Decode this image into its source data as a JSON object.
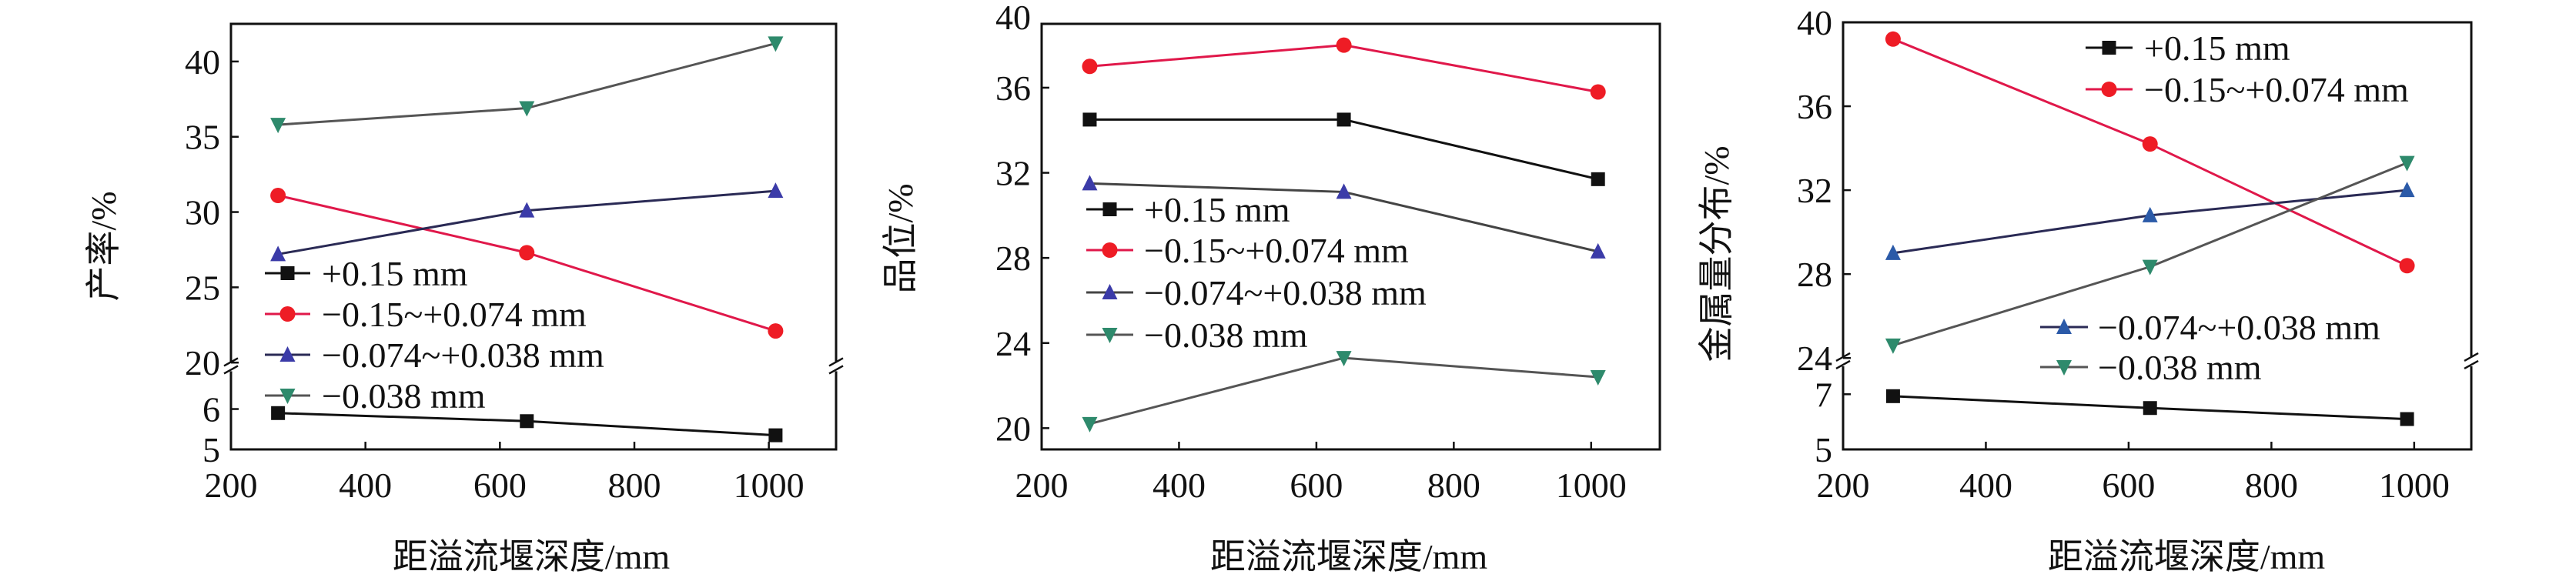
{
  "chart_data": [
    {
      "type": "line",
      "title": "",
      "xlabel": "距溢流堰深度/mm",
      "ylabel": "产率/%",
      "xlim": [
        200,
        1100
      ],
      "xticks": [
        200,
        400,
        600,
        800,
        1000
      ],
      "y_segments": [
        {
          "range": [
            5,
            6.95
          ],
          "ticks": [
            5,
            6
          ]
        },
        {
          "range": [
            20,
            42.5
          ],
          "ticks": [
            20,
            25,
            30,
            35,
            40
          ]
        }
      ],
      "legend": {
        "placement": "center-left",
        "groups": [
          [
            0,
            1,
            2,
            3
          ]
        ]
      },
      "series": [
        {
          "name": "+0.15 mm",
          "color": "#111111",
          "marker_color": "#111111",
          "marker": "square",
          "x": [
            270,
            640,
            1010
          ],
          "y": [
            5.9,
            5.7,
            5.35
          ]
        },
        {
          "name": "−0.15~+0.074 mm",
          "color": "#e0184a",
          "marker_color": "#ee1c25",
          "marker": "circle",
          "x": [
            270,
            640,
            1010
          ],
          "y": [
            31.1,
            27.3,
            22.1
          ]
        },
        {
          "name": "−0.074~+0.038 mm",
          "color": "#2a2a55",
          "marker_color": "#3b3ba8",
          "marker": "triangle-up",
          "x": [
            270,
            640,
            1010
          ],
          "y": [
            27.2,
            30.1,
            31.4
          ]
        },
        {
          "name": "−0.038 mm",
          "color": "#555555",
          "marker_color": "#2e8a6c",
          "marker": "triangle-down",
          "x": [
            270,
            640,
            1010
          ],
          "y": [
            35.8,
            36.9,
            41.2
          ]
        }
      ]
    },
    {
      "type": "line",
      "title": "",
      "xlabel": "距溢流堰深度/mm",
      "ylabel": "品位/%",
      "xlim": [
        200,
        1100
      ],
      "xticks": [
        200,
        400,
        600,
        800,
        1000
      ],
      "y_segments": [
        {
          "range": [
            19,
            39
          ],
          "ticks": [
            20,
            24,
            28,
            32,
            36,
            40
          ]
        }
      ],
      "legend": {
        "placement": "center-left",
        "groups": [
          [
            0,
            1,
            2,
            3
          ]
        ]
      },
      "series": [
        {
          "name": "+0.15 mm",
          "color": "#111111",
          "marker_color": "#111111",
          "marker": "square",
          "x": [
            270,
            640,
            1010
          ],
          "y": [
            34.5,
            34.5,
            31.7
          ]
        },
        {
          "name": "−0.15~+0.074 mm",
          "color": "#e0184a",
          "marker_color": "#ee1c25",
          "marker": "circle",
          "x": [
            270,
            640,
            1010
          ],
          "y": [
            37.0,
            38.0,
            35.8
          ]
        },
        {
          "name": "−0.074~+0.038 mm",
          "color": "#444444",
          "marker_color": "#3b3ba8",
          "marker": "triangle-up",
          "x": [
            270,
            640,
            1010
          ],
          "y": [
            31.5,
            31.1,
            28.3
          ]
        },
        {
          "name": "−0.038 mm",
          "color": "#555555",
          "marker_color": "#2e8a6c",
          "marker": "triangle-down",
          "x": [
            270,
            640,
            1010
          ],
          "y": [
            20.2,
            23.3,
            22.4
          ]
        }
      ]
    },
    {
      "type": "line",
      "title": "",
      "xlabel": "距溢流堰深度/mm",
      "ylabel": "金属量分布/%",
      "xlim": [
        200,
        1080
      ],
      "xticks": [
        200,
        400,
        600,
        800,
        1000
      ],
      "y_segments": [
        {
          "range": [
            5,
            8.05
          ],
          "ticks": [
            5,
            7
          ]
        },
        {
          "range": [
            24,
            40
          ],
          "ticks": [
            24,
            28,
            32,
            36,
            40
          ]
        }
      ],
      "legend": {
        "placement": "split: top-right and center-right",
        "groups": [
          [
            0,
            1
          ],
          [
            2,
            3
          ]
        ]
      },
      "series": [
        {
          "name": "+0.15 mm",
          "color": "#111111",
          "marker_color": "#111111",
          "marker": "square",
          "x": [
            270,
            630,
            990
          ],
          "y": [
            6.93,
            6.5,
            6.1
          ]
        },
        {
          "name": "−0.15~+0.074 mm",
          "color": "#e0184a",
          "marker_color": "#ee1c25",
          "marker": "circle",
          "x": [
            270,
            630,
            990
          ],
          "y": [
            39.2,
            34.2,
            28.4
          ]
        },
        {
          "name": "−0.074~+0.038 mm",
          "color": "#2a2a55",
          "marker_color": "#2b5aa8",
          "marker": "triangle-up",
          "x": [
            270,
            630,
            990
          ],
          "y": [
            29.0,
            30.8,
            32.0
          ]
        },
        {
          "name": "−0.038 mm",
          "color": "#555555",
          "marker_color": "#2e8a6c",
          "marker": "triangle-down",
          "x": [
            270,
            630,
            990
          ],
          "y": [
            24.6,
            28.35,
            33.3
          ]
        }
      ]
    }
  ]
}
